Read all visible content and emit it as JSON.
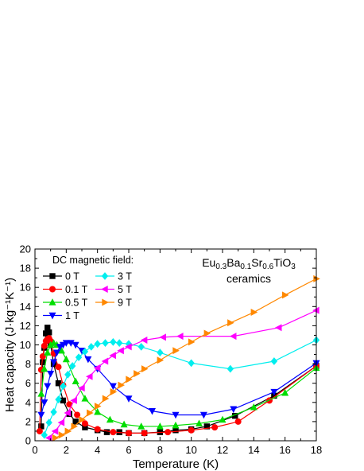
{
  "chart_data": {
    "type": "line",
    "xlabel": "Temperature (K)",
    "ylabel": "Heat capacity (J·kg⁻¹K⁻¹)",
    "xlim": [
      0,
      18
    ],
    "ylim": [
      0,
      20
    ],
    "xticks": [
      0,
      2,
      4,
      6,
      8,
      10,
      12,
      14,
      16,
      18
    ],
    "yticks": [
      0,
      2,
      4,
      6,
      8,
      10,
      12,
      14,
      16,
      18,
      20
    ],
    "legend_title": "DC magnetic field:",
    "legend_position": "top-left",
    "annotation": {
      "line1_parts": [
        {
          "text": "Eu",
          "sub": false
        },
        {
          "text": "0.3",
          "sub": true
        },
        {
          "text": "Ba",
          "sub": false
        },
        {
          "text": "0.1",
          "sub": true
        },
        {
          "text": "Sr",
          "sub": false
        },
        {
          "text": "0.6",
          "sub": true
        },
        {
          "text": "TiO",
          "sub": false
        },
        {
          "text": "3",
          "sub": true
        }
      ],
      "line2": "ceramics"
    },
    "series": [
      {
        "name": "0 T",
        "color": "#000000",
        "marker": "square",
        "x": [
          0.4,
          0.5,
          0.6,
          0.7,
          0.8,
          0.9,
          1.0,
          1.2,
          1.5,
          1.8,
          2.2,
          2.6,
          3.2,
          4.0,
          4.6,
          5.4,
          6.0,
          7.0,
          8.0,
          9.0,
          10.0,
          11.0,
          12.8,
          15.3,
          18.0
        ],
        "y": [
          1.5,
          8.2,
          9.7,
          11.2,
          11.8,
          11.3,
          10.0,
          8.0,
          6.0,
          4.2,
          2.8,
          2.0,
          1.4,
          1.1,
          0.9,
          0.9,
          0.8,
          0.8,
          0.9,
          1.1,
          1.2,
          1.5,
          2.6,
          4.7,
          7.8
        ]
      },
      {
        "name": "0.1 T",
        "color": "#ff0000",
        "marker": "circle",
        "x": [
          0.3,
          0.4,
          0.5,
          0.6,
          0.7,
          0.8,
          0.9,
          1.0,
          1.2,
          1.5,
          1.8,
          2.2,
          2.7,
          3.2,
          4.0,
          5.0,
          6.0,
          7.0,
          8.5,
          10.0,
          11.5,
          13.0,
          15.0,
          18.0
        ],
        "y": [
          1.0,
          7.4,
          8.8,
          9.9,
          10.4,
          10.6,
          10.7,
          10.4,
          9.1,
          7.7,
          5.8,
          3.8,
          2.7,
          1.8,
          1.2,
          0.9,
          0.8,
          0.8,
          0.9,
          1.1,
          1.4,
          2.0,
          4.2,
          7.8
        ]
      },
      {
        "name": "0.5 T",
        "color": "#00dd00",
        "marker": "triangle-up",
        "x": [
          0.4,
          0.6,
          0.8,
          1.0,
          1.2,
          1.4,
          1.7,
          2.0,
          2.6,
          3.2,
          4.0,
          4.8,
          5.7,
          6.8,
          8.0,
          9.0,
          10.5,
          12.0,
          14.0,
          16.0,
          18.0
        ],
        "y": [
          4.9,
          7.5,
          9.2,
          10.0,
          10.2,
          10.0,
          9.4,
          8.5,
          6.2,
          4.4,
          3.0,
          2.2,
          1.7,
          1.5,
          1.5,
          1.6,
          1.8,
          2.2,
          3.5,
          5.0,
          7.6
        ]
      },
      {
        "name": "1 T",
        "color": "#0000ff",
        "marker": "triangle-down",
        "x": [
          0.4,
          0.6,
          0.8,
          1.0,
          1.2,
          1.4,
          1.6,
          1.8,
          2.0,
          2.3,
          2.6,
          3.0,
          3.4,
          4.0,
          5.0,
          6.0,
          7.5,
          9.0,
          10.8,
          12.7,
          15.3,
          18.0
        ],
        "y": [
          2.7,
          4.0,
          5.7,
          7.0,
          8.2,
          9.2,
          9.8,
          10.0,
          10.2,
          10.2,
          10.0,
          9.4,
          8.5,
          7.5,
          5.7,
          4.4,
          3.1,
          2.7,
          2.7,
          3.3,
          5.1,
          8.1
        ]
      },
      {
        "name": "3 T",
        "color": "#00eeee",
        "marker": "diamond",
        "x": [
          0.6,
          0.9,
          1.2,
          1.5,
          1.8,
          2.1,
          2.4,
          2.8,
          3.2,
          3.6,
          4.0,
          4.5,
          5.0,
          5.4,
          6.0,
          6.8,
          8.0,
          10.0,
          12.5,
          15.3,
          18.0
        ],
        "y": [
          0.6,
          1.9,
          3.0,
          4.3,
          5.7,
          6.9,
          7.8,
          8.7,
          9.3,
          9.8,
          10.1,
          10.2,
          10.3,
          10.2,
          10.1,
          9.8,
          9.2,
          8.1,
          7.5,
          8.3,
          10.5
        ]
      },
      {
        "name": "5 T",
        "color": "#ff00ff",
        "marker": "triangle-left",
        "x": [
          0.9,
          1.3,
          1.7,
          2.1,
          2.5,
          3.0,
          3.5,
          4.0,
          4.5,
          5.0,
          5.5,
          6.0,
          7.0,
          8.2,
          9.3,
          12.7,
          15.6,
          18.0
        ],
        "y": [
          0.3,
          1.0,
          1.9,
          2.9,
          4.2,
          5.5,
          6.7,
          7.6,
          8.3,
          8.9,
          9.4,
          9.8,
          10.5,
          10.8,
          10.9,
          10.9,
          11.8,
          13.6
        ]
      },
      {
        "name": "9 T",
        "color": "#ff8800",
        "marker": "triangle-right",
        "x": [
          1.3,
          1.7,
          2.1,
          2.5,
          3.0,
          3.5,
          4.0,
          4.5,
          5.0,
          5.5,
          6.0,
          6.5,
          7.0,
          8.0,
          9.0,
          10.0,
          11.0,
          12.5,
          14.0,
          16.0,
          18.0
        ],
        "y": [
          0.3,
          0.6,
          1.0,
          1.5,
          2.2,
          2.9,
          3.6,
          4.4,
          5.1,
          5.8,
          6.4,
          7.0,
          7.5,
          8.4,
          9.4,
          10.3,
          11.2,
          12.3,
          13.4,
          15.2,
          16.9
        ]
      }
    ]
  }
}
